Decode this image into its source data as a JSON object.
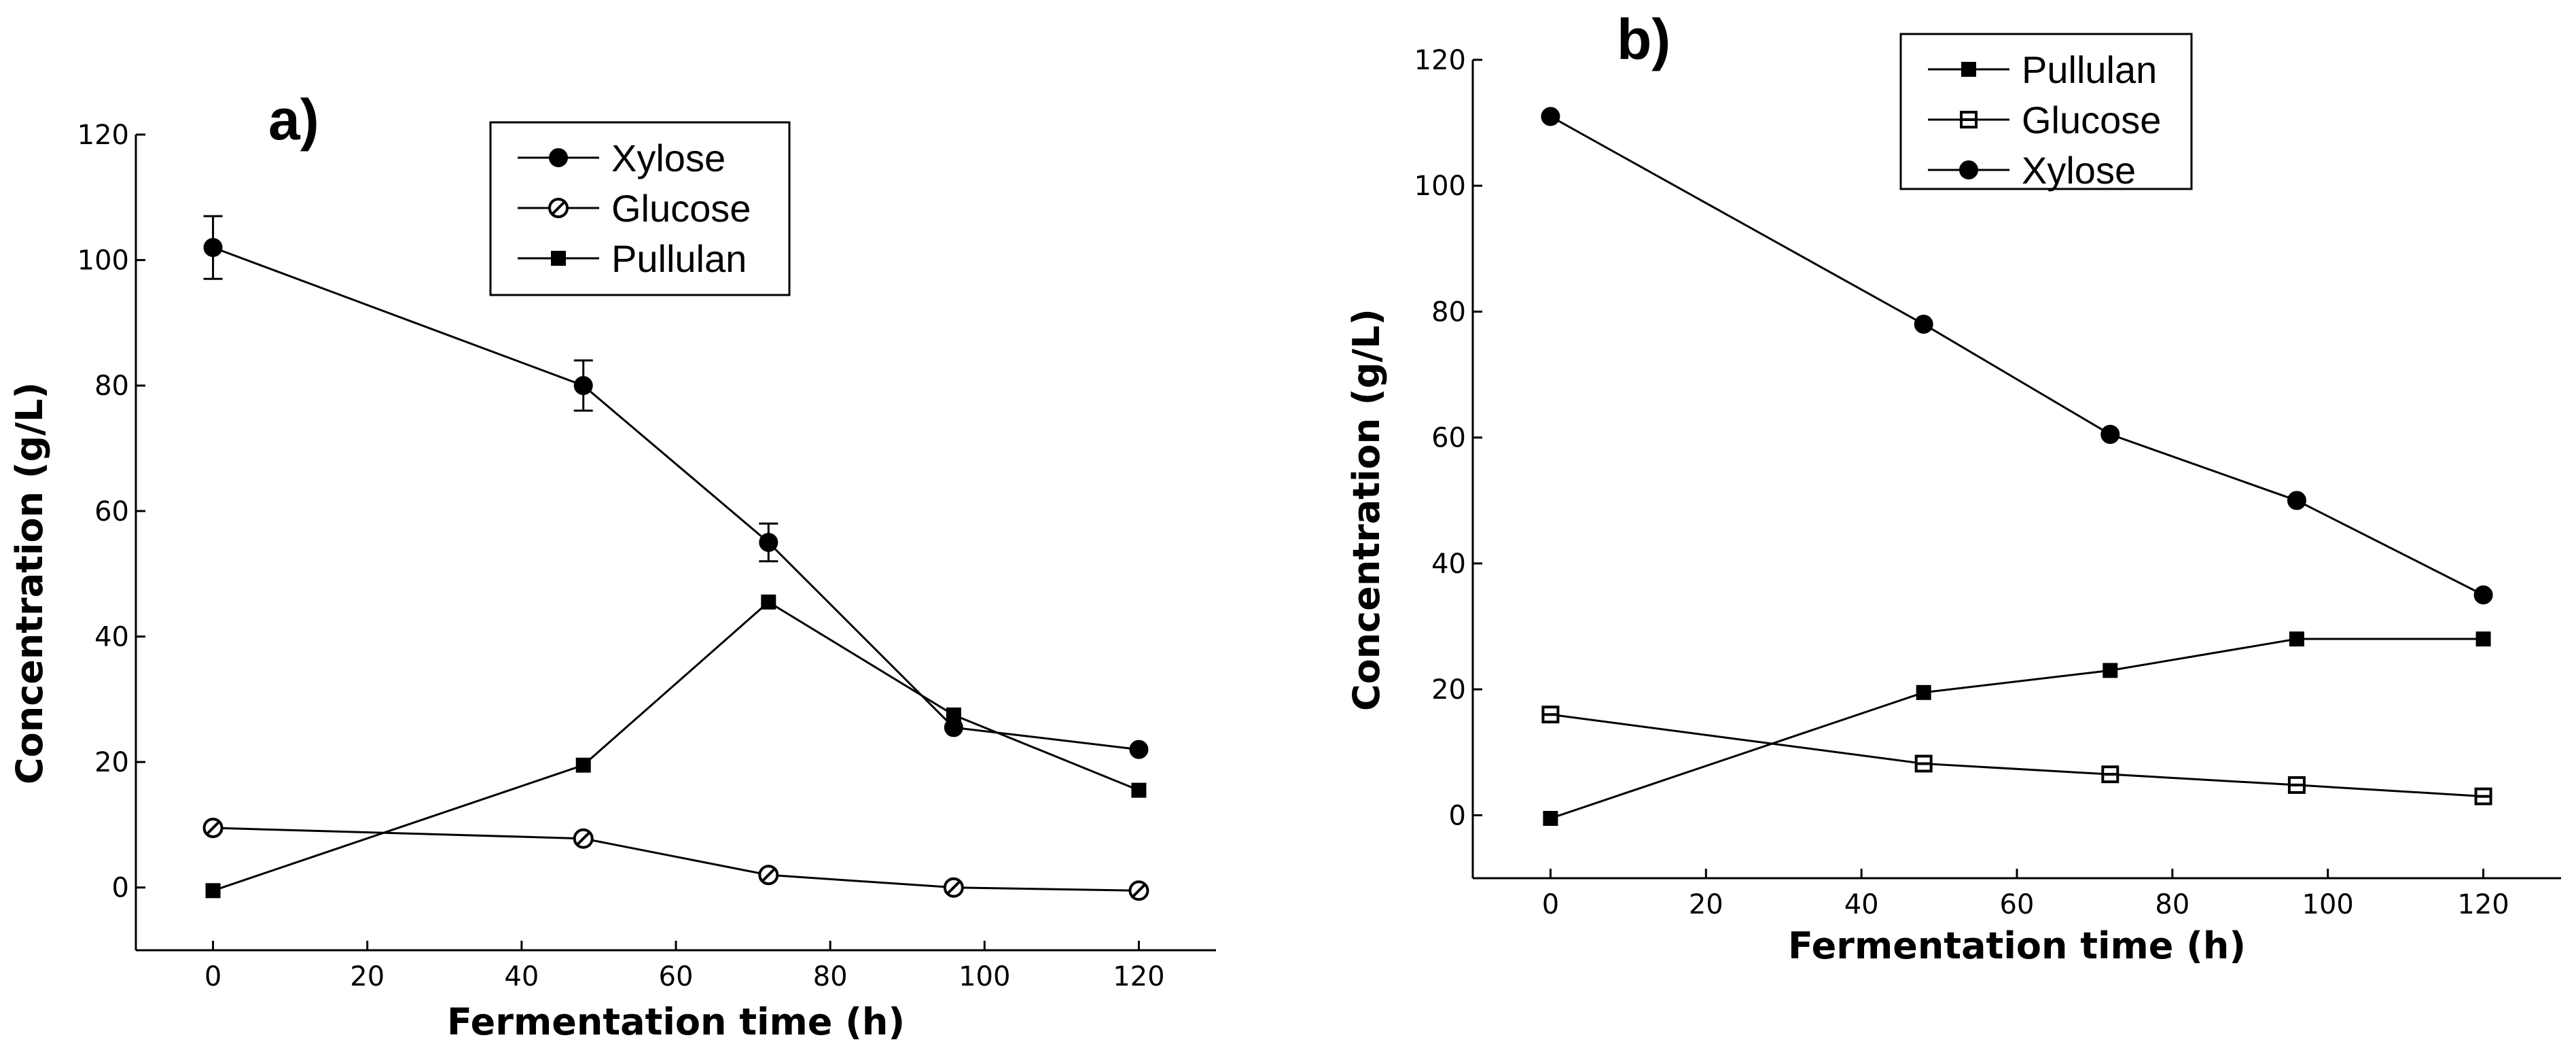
{
  "chart_data": [
    {
      "type": "line",
      "panel_label": "a)",
      "xlabel": "Fermentation time (h)",
      "ylabel": "Concentration (g/L)",
      "xlim": [
        -10,
        130
      ],
      "ylim": [
        -10,
        120
      ],
      "xticks": [
        0,
        20,
        40,
        60,
        80,
        100,
        120
      ],
      "yticks": [
        0,
        20,
        40,
        60,
        80,
        100,
        120
      ],
      "legend_position": "top-right",
      "series": [
        {
          "name": "Xylose",
          "marker": "filled-circle",
          "x": [
            0,
            48,
            72,
            96,
            120
          ],
          "y": [
            102,
            80,
            55,
            25.5,
            22
          ],
          "err": [
            5,
            4,
            3,
            0,
            0
          ]
        },
        {
          "name": "Glucose",
          "marker": "open-circle",
          "x": [
            0,
            48,
            72,
            96,
            120
          ],
          "y": [
            9.5,
            7.8,
            2,
            0,
            -0.5
          ],
          "err": [
            0,
            0,
            0,
            0,
            0
          ]
        },
        {
          "name": "Pullulan",
          "marker": "filled-square",
          "x": [
            0,
            48,
            72,
            96,
            120
          ],
          "y": [
            -0.5,
            19.5,
            45.5,
            27.5,
            15.5
          ],
          "err": [
            0,
            0,
            0,
            0,
            0
          ]
        }
      ]
    },
    {
      "type": "line",
      "panel_label": "b)",
      "xlabel": "Fermentation time (h)",
      "ylabel": "Concentration (g/L)",
      "xlim": [
        -10,
        130
      ],
      "ylim": [
        -10,
        120
      ],
      "xticks": [
        0,
        20,
        40,
        60,
        80,
        100,
        120
      ],
      "yticks": [
        0,
        20,
        40,
        60,
        80,
        100,
        120
      ],
      "legend_position": "top-center",
      "series": [
        {
          "name": "Pullulan",
          "marker": "filled-square",
          "x": [
            0,
            48,
            72,
            96,
            120
          ],
          "y": [
            -0.5,
            19.5,
            23,
            28,
            28
          ],
          "err": [
            0,
            0,
            0,
            0,
            0
          ]
        },
        {
          "name": "Glucose",
          "marker": "open-square",
          "x": [
            0,
            48,
            72,
            96,
            120
          ],
          "y": [
            16,
            8.2,
            6.5,
            4.8,
            3
          ],
          "err": [
            0,
            0,
            0,
            0,
            0
          ]
        },
        {
          "name": "Xylose",
          "marker": "filled-circle",
          "x": [
            0,
            48,
            72,
            96,
            120
          ],
          "y": [
            111,
            78,
            60.5,
            50,
            35
          ],
          "err": [
            0,
            0,
            0,
            0,
            0
          ]
        }
      ]
    }
  ]
}
